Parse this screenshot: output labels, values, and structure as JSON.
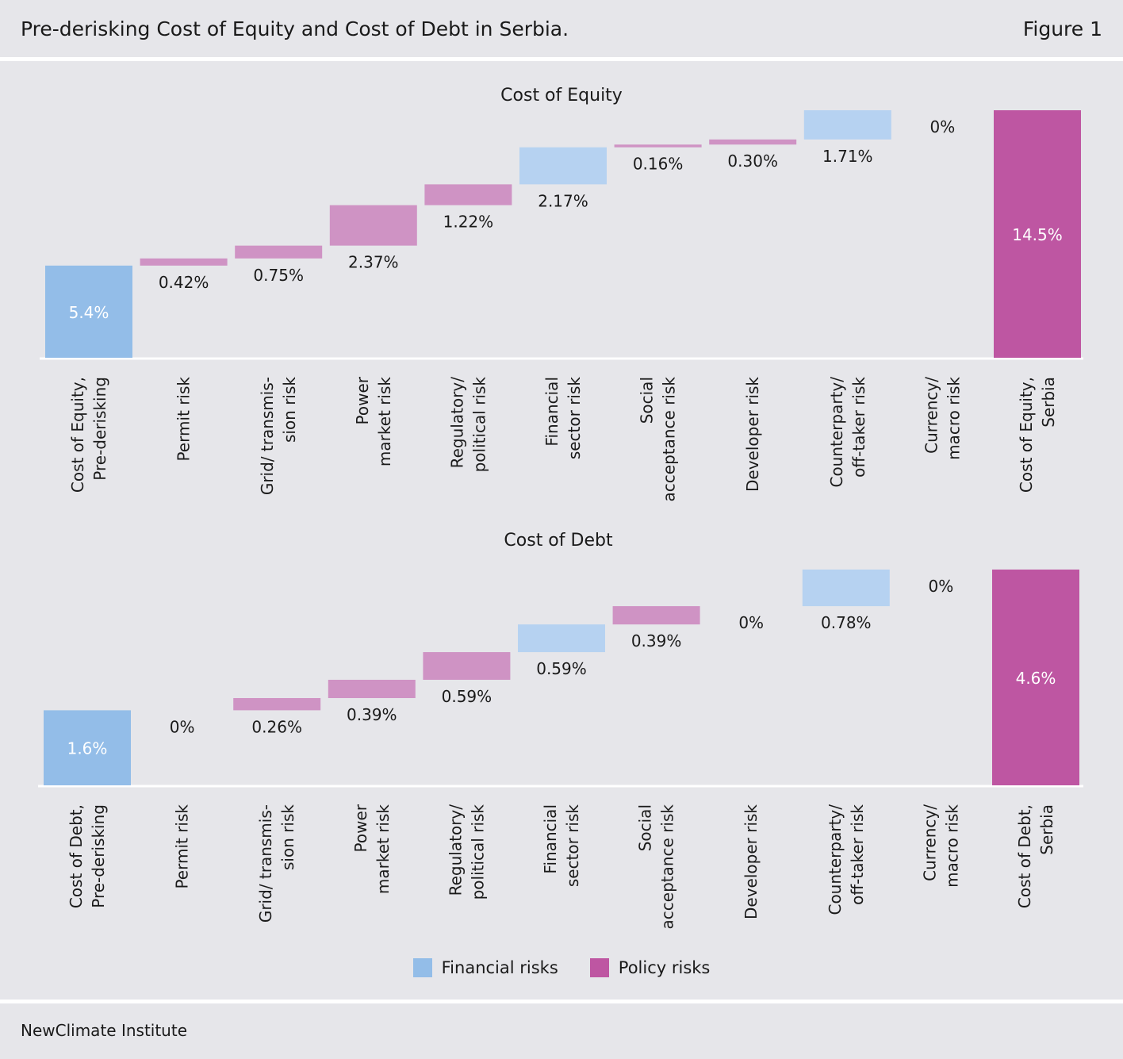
{
  "header": {
    "title": "Pre-derisking Cost of Equity and Cost of Debt in Serbia.",
    "figure_label": "Figure 1"
  },
  "footer": {
    "source": "NewClimate Institute"
  },
  "colors": {
    "financial_base": "#93bde8",
    "financial_step": "#b6d2f1",
    "policy_step": "#cf93c4",
    "policy_total": "#be56a2",
    "axis": "#ffffff"
  },
  "legend": [
    {
      "label": "Financial risks",
      "color": "#93bde8"
    },
    {
      "label": "Policy risks",
      "color": "#be56a2"
    }
  ],
  "chart_data": [
    {
      "type": "bar",
      "subtype": "waterfall",
      "title": "Cost of Equity",
      "unit": "%",
      "categories": [
        [
          "Cost of Equity,",
          "Pre-derisking"
        ],
        [
          "Permit risk"
        ],
        [
          "Grid/ transmis-",
          "sion risk"
        ],
        [
          "Power",
          "market risk"
        ],
        [
          "Regulatory/",
          "political risk"
        ],
        [
          "Financial",
          "sector risk"
        ],
        [
          "Social",
          "acceptance risk"
        ],
        [
          "Developer risk"
        ],
        [
          "Counterparty/",
          "off-taker risk"
        ],
        [
          "Currency/",
          "macro risk"
        ],
        [
          "Cost of Equity,",
          "Serbia"
        ]
      ],
      "values": [
        5.4,
        0.42,
        0.75,
        2.37,
        1.22,
        2.17,
        0.16,
        0.3,
        1.71,
        0,
        14.5
      ],
      "labels": [
        "5.4%",
        "0.42%",
        "0.75%",
        "2.37%",
        "1.22%",
        "2.17%",
        "0.16%",
        "0.30%",
        "1.71%",
        "0%",
        "14.5%"
      ],
      "kinds": [
        "base",
        "policy",
        "policy",
        "policy",
        "policy",
        "financial",
        "policy",
        "policy",
        "financial",
        "financial",
        "total"
      ]
    },
    {
      "type": "bar",
      "subtype": "waterfall",
      "title": "Cost of Debt",
      "unit": "%",
      "categories": [
        [
          "Cost of Debt,",
          "Pre-derisking"
        ],
        [
          "Permit risk"
        ],
        [
          "Grid/ transmis-",
          "sion risk"
        ],
        [
          "Power",
          "market risk"
        ],
        [
          "Regulatory/",
          "political risk"
        ],
        [
          "Financial",
          "sector risk"
        ],
        [
          "Social",
          "acceptance risk"
        ],
        [
          "Developer risk"
        ],
        [
          "Counterparty/",
          "off-taker risk"
        ],
        [
          "Currency/",
          "macro risk"
        ],
        [
          "Cost of Debt,",
          "Serbia"
        ]
      ],
      "values": [
        1.6,
        0,
        0.26,
        0.39,
        0.59,
        0.59,
        0.39,
        0,
        0.78,
        0,
        4.6
      ],
      "labels": [
        "1.6%",
        "0%",
        "0.26%",
        "0.39%",
        "0.59%",
        "0.59%",
        "0.39%",
        "0%",
        "0.78%",
        "0%",
        "4.6%"
      ],
      "kinds": [
        "base",
        "policy",
        "policy",
        "policy",
        "policy",
        "financial",
        "policy",
        "policy",
        "financial",
        "financial",
        "total"
      ]
    }
  ]
}
